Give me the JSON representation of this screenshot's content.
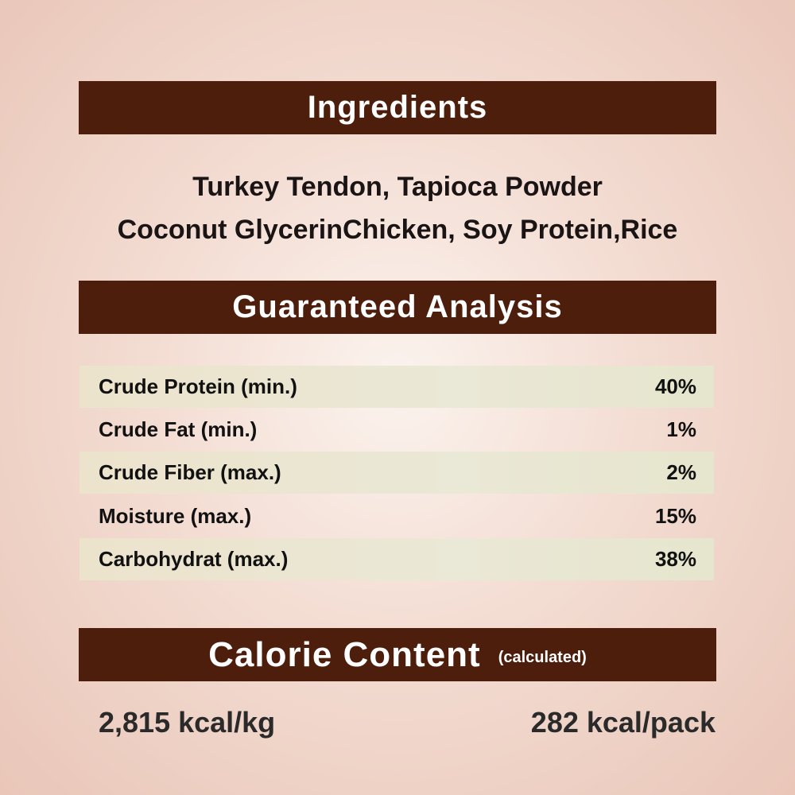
{
  "ingredients": {
    "title": "Ingredients",
    "lines": [
      "Turkey Tendon, Tapioca Powder",
      "Coconut GlycerinChicken, Soy Protein,Rice"
    ]
  },
  "analysis": {
    "title": "Guaranteed Analysis",
    "rows": [
      {
        "label": "Crude Protein (min.)",
        "value": "40%"
      },
      {
        "label": "Crude Fat (min.)",
        "value": "1%"
      },
      {
        "label": "Crude Fiber (max.)",
        "value": "2%"
      },
      {
        "label": "Moisture (max.)",
        "value": "15%"
      },
      {
        "label": "Carbohydrat (max.)",
        "value": "38%"
      }
    ]
  },
  "calorie": {
    "title": "Calorie Content",
    "subtitle": "(calculated)",
    "per_kg": "2,815 kcal/kg",
    "per_pack": "282 kcal/pack"
  },
  "colors": {
    "banner": "#4e1e0c",
    "background": "#f3dcd2",
    "row_shade": "#eae8d6"
  }
}
